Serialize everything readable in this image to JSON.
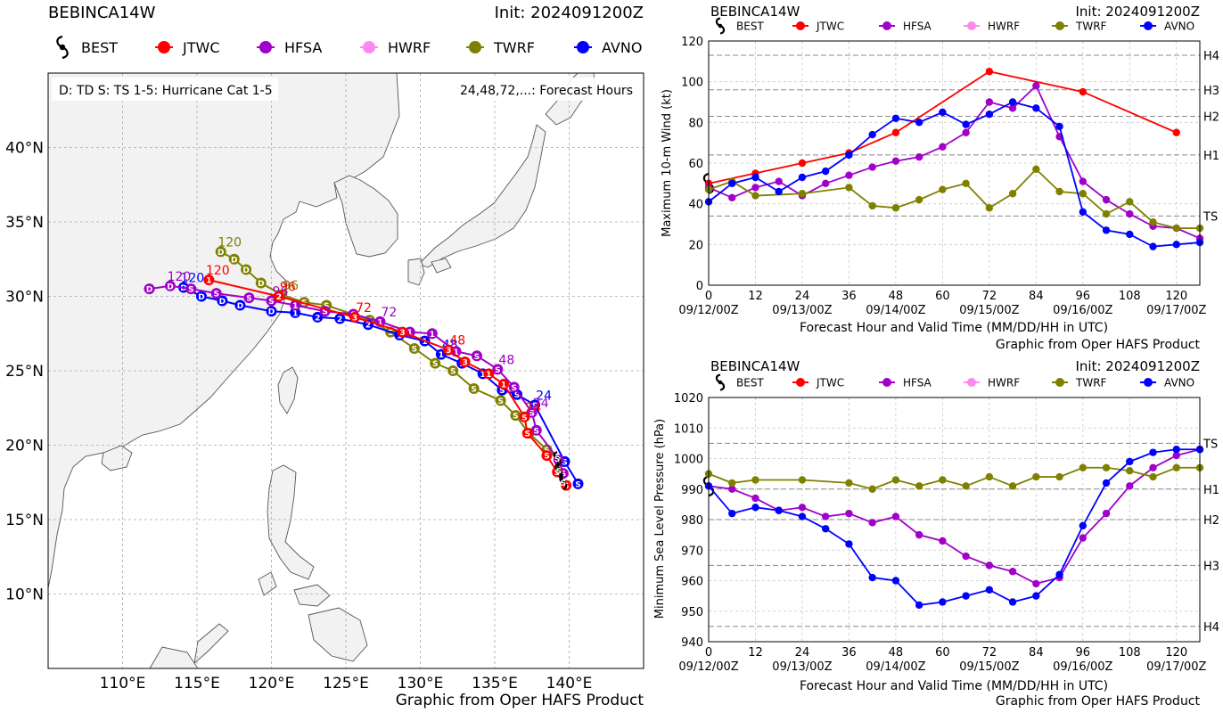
{
  "storm": "BEBINCA14W",
  "init": "Init: 2024091200Z",
  "credit": "Graphic from Oper HAFS Product",
  "colors": {
    "BEST": "#000000",
    "JTWC": "#ff0000",
    "HFSA": "#a000c8",
    "HWRF": "#ff88ee",
    "TWRF": "#808000",
    "AVNO": "#0000ff"
  },
  "legend": [
    "BEST",
    "JTWC",
    "HFSA",
    "HWRF",
    "TWRF",
    "AVNO"
  ],
  "map": {
    "key_left": "D: TD  S: TS  1-5: Hurricane Cat 1-5",
    "key_right": "24,48,72,...: Forecast Hours",
    "lon_ticks": [
      "110°E",
      "115°E",
      "120°E",
      "125°E",
      "130°E",
      "135°E",
      "140°E"
    ],
    "lat_ticks": [
      "40°N",
      "35°N",
      "30°N",
      "25°N",
      "20°N",
      "15°N",
      "10°N"
    ],
    "lon_values": [
      110,
      115,
      120,
      125,
      130,
      135,
      140
    ],
    "lat_values": [
      40,
      35,
      30,
      25,
      20,
      15,
      10
    ]
  },
  "xticks": {
    "hours": [
      0,
      12,
      24,
      36,
      48,
      60,
      72,
      84,
      96,
      108,
      120
    ],
    "labels": [
      "0",
      "12",
      "24",
      "36",
      "48",
      "60",
      "72",
      "84",
      "96",
      "108",
      "120"
    ],
    "dates": [
      "09/12/00Z",
      "09/13/00Z",
      "09/14/00Z",
      "09/15/00Z",
      "09/16/00Z",
      "09/17/00Z"
    ],
    "date_hours": [
      0,
      24,
      48,
      72,
      96,
      120
    ]
  },
  "wind": {
    "ylabel": "Maximum 10-m Wind (kt)",
    "xlabel": "Forecast Hour and Valid Time (MM/DD/HH in UTC)",
    "yticks": [
      "0",
      "20",
      "40",
      "60",
      "80",
      "100",
      "120"
    ],
    "categories": [
      "H4",
      "H3",
      "H2",
      "H1",
      "TS"
    ]
  },
  "pressure": {
    "ylabel": "Minimum Sea Level Pressure (hPa)",
    "xlabel": "Forecast Hour and Valid Time (MM/DD/HH in UTC)",
    "yticks": [
      "940",
      "950",
      "960",
      "970",
      "980",
      "990",
      "1000",
      "1010",
      "1020"
    ],
    "categories": [
      "TS",
      "H1",
      "H2",
      "H3",
      "H4"
    ]
  },
  "chart_data": [
    {
      "type": "line",
      "title": "BEBINCA14W",
      "xlabel": "Forecast Hour and Valid Time (MM/DD/HH in UTC)",
      "ylabel": "Maximum 10-m Wind (kt)",
      "xlim": [
        0,
        126
      ],
      "ylim": [
        0,
        120
      ],
      "grid": true,
      "legend": "top",
      "category_lines": [
        {
          "name": "H4",
          "value": 113
        },
        {
          "name": "H3",
          "value": 96
        },
        {
          "name": "H2",
          "value": 83
        },
        {
          "name": "H1",
          "value": 64
        },
        {
          "name": "TS",
          "value": 34
        }
      ],
      "series": [
        {
          "name": "BEST",
          "x": [
            0
          ],
          "y": [
            50
          ]
        },
        {
          "name": "JTWC",
          "x": [
            0,
            12,
            24,
            36,
            48,
            72,
            96,
            120
          ],
          "y": [
            50,
            55,
            60,
            65,
            75,
            105,
            95,
            75
          ]
        },
        {
          "name": "HFSA",
          "x": [
            0,
            6,
            12,
            18,
            24,
            30,
            36,
            42,
            48,
            54,
            60,
            66,
            72,
            78,
            84,
            90,
            96,
            102,
            108,
            114,
            120,
            126
          ],
          "y": [
            48,
            43,
            48,
            51,
            44,
            50,
            54,
            58,
            61,
            63,
            68,
            75,
            90,
            87,
            98,
            73,
            51,
            42,
            35,
            29,
            28,
            23
          ]
        },
        {
          "name": "TWRF",
          "x": [
            0,
            6,
            12,
            24,
            36,
            42,
            48,
            54,
            60,
            66,
            72,
            78,
            84,
            90,
            96,
            102,
            108,
            114,
            120,
            126
          ],
          "y": [
            47,
            51,
            44,
            45,
            48,
            39,
            38,
            42,
            47,
            50,
            38,
            45,
            57,
            46,
            45,
            35,
            41,
            31,
            28,
            28
          ]
        },
        {
          "name": "AVNO",
          "x": [
            0,
            6,
            12,
            18,
            24,
            30,
            36,
            42,
            48,
            54,
            60,
            66,
            72,
            78,
            84,
            90,
            96,
            102,
            108,
            114,
            120,
            126
          ],
          "y": [
            41,
            50,
            53,
            46,
            53,
            56,
            64,
            74,
            82,
            80,
            85,
            79,
            84,
            90,
            87,
            78,
            36,
            27,
            25,
            19,
            20,
            21
          ]
        }
      ]
    },
    {
      "type": "line",
      "title": "BEBINCA14W",
      "xlabel": "Forecast Hour and Valid Time (MM/DD/HH in UTC)",
      "ylabel": "Minimum Sea Level Pressure (hPa)",
      "xlim": [
        0,
        126
      ],
      "ylim": [
        940,
        1020
      ],
      "grid": true,
      "legend": "top",
      "category_lines": [
        {
          "name": "TS",
          "value": 1005
        },
        {
          "name": "H1",
          "value": 990
        },
        {
          "name": "H2",
          "value": 980
        },
        {
          "name": "H3",
          "value": 965
        },
        {
          "name": "H4",
          "value": 945
        }
      ],
      "series": [
        {
          "name": "BEST",
          "x": [
            0
          ],
          "y": [
            991
          ]
        },
        {
          "name": "HFSA",
          "x": [
            0,
            6,
            12,
            18,
            24,
            30,
            36,
            42,
            48,
            54,
            60,
            66,
            72,
            78,
            84,
            90,
            96,
            102,
            108,
            114,
            120,
            126
          ],
          "y": [
            991,
            990,
            987,
            983,
            984,
            981,
            982,
            979,
            981,
            975,
            973,
            968,
            965,
            963,
            959,
            961,
            974,
            982,
            991,
            997,
            1001,
            1003
          ]
        },
        {
          "name": "TWRF",
          "x": [
            0,
            6,
            12,
            24,
            36,
            42,
            48,
            54,
            60,
            66,
            72,
            78,
            84,
            90,
            96,
            102,
            108,
            114,
            120,
            126
          ],
          "y": [
            995,
            992,
            993,
            993,
            992,
            990,
            993,
            991,
            993,
            991,
            994,
            991,
            994,
            994,
            997,
            997,
            996,
            994,
            997,
            997
          ]
        },
        {
          "name": "AVNO",
          "x": [
            0,
            6,
            12,
            18,
            24,
            30,
            36,
            42,
            48,
            54,
            60,
            66,
            72,
            78,
            84,
            90,
            96,
            102,
            108,
            114,
            120,
            126
          ],
          "y": [
            991,
            982,
            984,
            983,
            981,
            977,
            972,
            961,
            960,
            952,
            953,
            955,
            957,
            953,
            955,
            962,
            978,
            992,
            999,
            1002,
            1003,
            1003
          ]
        }
      ]
    },
    {
      "type": "scatter",
      "title": "BEBINCA14W",
      "x_axis": "longitude (°E)",
      "y_axis": "latitude (°N)",
      "xlim": [
        105,
        145
      ],
      "ylim": [
        5,
        45
      ],
      "series": [
        {
          "name": "BEST",
          "points": [
            {
              "lon": 139.6,
              "lat": 17.5,
              "c": "S"
            },
            {
              "lon": 139.3,
              "lat": 18.3,
              "c": "S"
            },
            {
              "lon": 139.2,
              "lat": 19.1,
              "c": "S"
            }
          ]
        },
        {
          "name": "JTWC",
          "points": [
            {
              "lon": 139.8,
              "lat": 17.3,
              "c": "S"
            },
            {
              "lon": 139.2,
              "lat": 18.2,
              "c": "S"
            },
            {
              "lon": 138.5,
              "lat": 19.3,
              "c": "S"
            },
            {
              "lon": 137.2,
              "lat": 20.8,
              "c": "S"
            },
            {
              "lon": 137,
              "lat": 21.9,
              "c": "S",
              "h": 24
            },
            {
              "lon": 135.6,
              "lat": 24.1,
              "c": "1"
            },
            {
              "lon": 134.6,
              "lat": 24.8,
              "c": "1"
            },
            {
              "lon": 133,
              "lat": 25.6,
              "c": "3"
            },
            {
              "lon": 131.9,
              "lat": 26.4,
              "c": "3",
              "h": 48
            },
            {
              "lon": 128.8,
              "lat": 27.6,
              "c": "3"
            },
            {
              "lon": 125.6,
              "lat": 28.6,
              "c": "3",
              "h": 72
            },
            {
              "lon": 120.5,
              "lat": 30.0,
              "c": "2",
              "h": 96
            },
            {
              "lon": 115.8,
              "lat": 31.1,
              "c": "1",
              "h": 120
            }
          ]
        },
        {
          "name": "HFSA",
          "points": [
            {
              "lon": 139.6,
              "lat": 18.1,
              "c": "S"
            },
            {
              "lon": 139.3,
              "lat": 19.0,
              "c": "S"
            },
            {
              "lon": 137.8,
              "lat": 21.0,
              "c": "S"
            },
            {
              "lon": 137.5,
              "lat": 22.2,
              "c": "S",
              "h": 24
            },
            {
              "lon": 136.3,
              "lat": 23.9,
              "c": "S"
            },
            {
              "lon": 135.2,
              "lat": 25.1,
              "c": "S",
              "h": 48
            },
            {
              "lon": 133.8,
              "lat": 26.0,
              "c": "S"
            },
            {
              "lon": 132.4,
              "lat": 26.3,
              "c": "1"
            },
            {
              "lon": 130.8,
              "lat": 27.5,
              "c": "1"
            },
            {
              "lon": 129.3,
              "lat": 27.6,
              "c": "1"
            },
            {
              "lon": 127.3,
              "lat": 28.3,
              "c": "1",
              "h": 72
            },
            {
              "lon": 125.5,
              "lat": 28.8,
              "c": "S"
            },
            {
              "lon": 123.6,
              "lat": 29.0,
              "c": "S"
            },
            {
              "lon": 121.6,
              "lat": 29.4,
              "c": "1"
            },
            {
              "lon": 120,
              "lat": 29.7,
              "c": "S",
              "h": 96
            },
            {
              "lon": 118.5,
              "lat": 29.9,
              "c": "S"
            },
            {
              "lon": 116.3,
              "lat": 30.2,
              "c": "S"
            },
            {
              "lon": 114.6,
              "lat": 30.5,
              "c": "S"
            },
            {
              "lon": 113.2,
              "lat": 30.7,
              "c": "D",
              "h": 120
            },
            {
              "lon": 111.8,
              "lat": 30.5,
              "c": "D"
            }
          ]
        },
        {
          "name": "TWRF",
          "points": [
            {
              "lon": 139.5,
              "lat": 18.9,
              "c": "S"
            },
            {
              "lon": 138.5,
              "lat": 19.7,
              "c": "S"
            },
            {
              "lon": 137.3,
              "lat": 20.8,
              "c": "S"
            },
            {
              "lon": 136.4,
              "lat": 22.0,
              "c": "S"
            },
            {
              "lon": 135.4,
              "lat": 23.0,
              "c": "S"
            },
            {
              "lon": 133.6,
              "lat": 23.8,
              "c": "S"
            },
            {
              "lon": 132.2,
              "lat": 25.0,
              "c": "S"
            },
            {
              "lon": 131,
              "lat": 25.5,
              "c": "S"
            },
            {
              "lon": 129.6,
              "lat": 26.5,
              "c": "S"
            },
            {
              "lon": 128,
              "lat": 27.6,
              "c": "S"
            },
            {
              "lon": 126.6,
              "lat": 28.4,
              "c": "S"
            },
            {
              "lon": 123.7,
              "lat": 29.4,
              "c": "S"
            },
            {
              "lon": 122.2,
              "lat": 29.6,
              "c": "S"
            },
            {
              "lon": 120.7,
              "lat": 30.1,
              "c": "S",
              "h": 96
            },
            {
              "lon": 119.3,
              "lat": 30.9,
              "c": "D"
            },
            {
              "lon": 118.3,
              "lat": 31.8,
              "c": "D"
            },
            {
              "lon": 117.5,
              "lat": 32.5,
              "c": "D"
            },
            {
              "lon": 116.6,
              "lat": 33.0,
              "c": "D",
              "h": 120
            }
          ]
        },
        {
          "name": "AVNO",
          "points": [
            {
              "lon": 140.6,
              "lat": 17.4,
              "c": "S"
            },
            {
              "lon": 139.7,
              "lat": 18.9,
              "c": "S"
            },
            {
              "lon": 137.7,
              "lat": 22.7,
              "c": "S",
              "h": 24
            },
            {
              "lon": 136.5,
              "lat": 23.4,
              "c": "S"
            },
            {
              "lon": 135.5,
              "lat": 23.7,
              "c": "S"
            },
            {
              "lon": 134.2,
              "lat": 24.8,
              "c": "1"
            },
            {
              "lon": 132.8,
              "lat": 25.5,
              "c": "1"
            },
            {
              "lon": 131.4,
              "lat": 26.1,
              "c": "1",
              "h": 48
            },
            {
              "lon": 130.3,
              "lat": 27.0,
              "c": "1"
            },
            {
              "lon": 128.6,
              "lat": 27.4,
              "c": "1"
            },
            {
              "lon": 126.5,
              "lat": 28.1,
              "c": "2"
            },
            {
              "lon": 124.6,
              "lat": 28.5,
              "c": "2"
            },
            {
              "lon": 123.1,
              "lat": 28.6,
              "c": "2"
            },
            {
              "lon": 121.6,
              "lat": 28.9,
              "c": "1"
            },
            {
              "lon": 120,
              "lat": 29.0,
              "c": "D"
            },
            {
              "lon": 117.9,
              "lat": 29.4,
              "c": "D"
            },
            {
              "lon": 116.7,
              "lat": 29.7,
              "c": "D"
            },
            {
              "lon": 115.3,
              "lat": 30.0,
              "c": "D"
            },
            {
              "lon": 114.1,
              "lat": 30.6,
              "c": "D",
              "h": 120
            }
          ]
        }
      ]
    }
  ]
}
